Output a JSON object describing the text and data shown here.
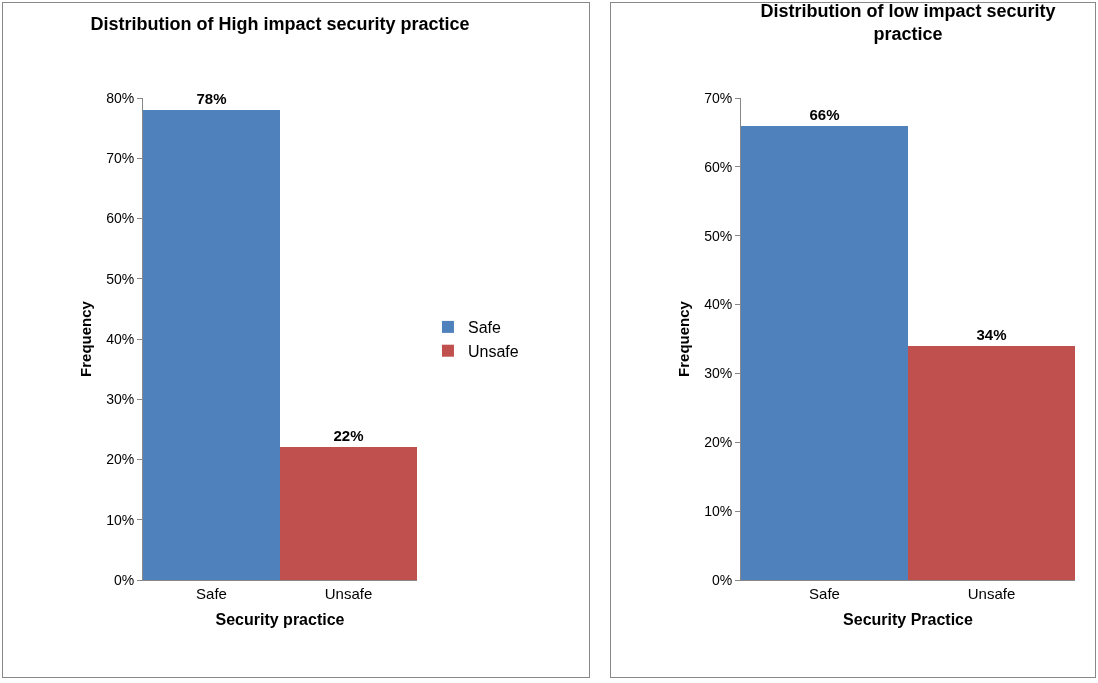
{
  "chart_data": [
    {
      "type": "bar",
      "title": "Distribution of High impact security practice",
      "xlabel": "Security practice",
      "ylabel": "Frequency",
      "categories": [
        "Safe",
        "Unsafe"
      ],
      "series": [
        {
          "name": "Safe",
          "color": "#4f81bd",
          "values": [
            78,
            null
          ],
          "value_labels": [
            "78%",
            null
          ]
        },
        {
          "name": "Unsafe",
          "color": "#c0504d",
          "values": [
            null,
            22
          ],
          "value_labels": [
            null,
            "22%"
          ]
        }
      ],
      "ylim": [
        0,
        80
      ],
      "yticks": [
        {
          "value": 0,
          "label": "0%"
        },
        {
          "value": 10,
          "label": "10%"
        },
        {
          "value": 20,
          "label": "20%"
        },
        {
          "value": 30,
          "label": "30%"
        },
        {
          "value": 40,
          "label": "40%"
        },
        {
          "value": 50,
          "label": "50%"
        },
        {
          "value": 60,
          "label": "60%"
        },
        {
          "value": 70,
          "label": "70%"
        },
        {
          "value": 80,
          "label": "80%"
        }
      ],
      "grid": false,
      "legend": "right"
    },
    {
      "type": "bar",
      "title": "Distribution of low impact security practice",
      "xlabel": "Security Practice",
      "ylabel": "Frequency",
      "categories": [
        "Safe",
        "Unsafe"
      ],
      "values": [
        66,
        34
      ],
      "colors": [
        "#4f81bd",
        "#c0504d"
      ],
      "value_labels": [
        "66%",
        "34%"
      ],
      "ylim": [
        0,
        70
      ],
      "yticks": [
        {
          "value": 0,
          "label": "0%"
        },
        {
          "value": 10,
          "label": "10%"
        },
        {
          "value": 20,
          "label": "20%"
        },
        {
          "value": 30,
          "label": "30%"
        },
        {
          "value": 40,
          "label": "40%"
        },
        {
          "value": 50,
          "label": "50%"
        },
        {
          "value": 60,
          "label": "60%"
        },
        {
          "value": 70,
          "label": "70%"
        }
      ],
      "grid": false
    }
  ]
}
